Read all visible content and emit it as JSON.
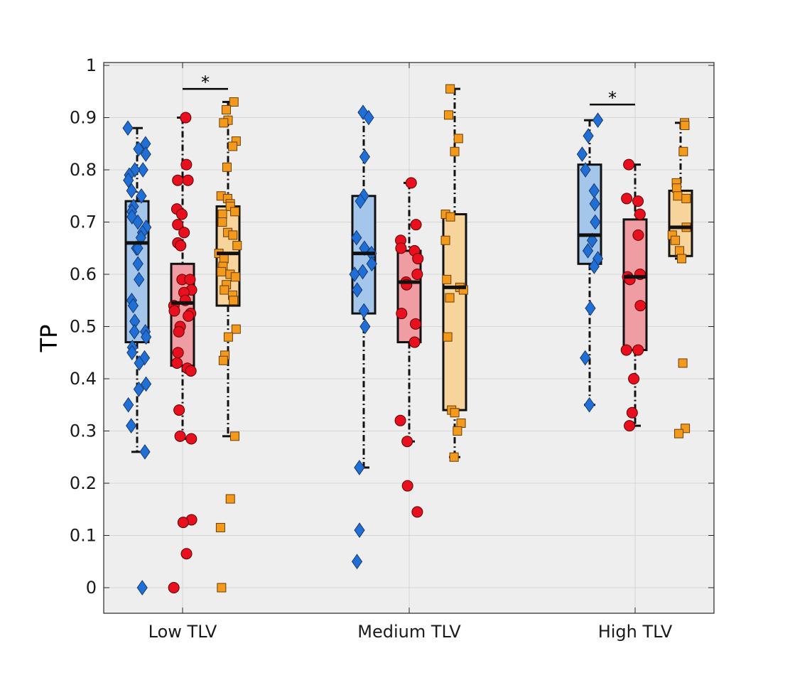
{
  "chart_data": {
    "type": "boxplot",
    "title": "",
    "xlabel": "",
    "ylabel": "TP",
    "ylim": [
      -0.05,
      1.0
    ],
    "yticks": [
      0,
      0.1,
      0.2,
      0.3,
      0.4,
      0.5,
      0.6,
      0.7,
      0.8,
      0.9,
      1
    ],
    "ytick_labels": [
      "0",
      "0.1",
      "0.2",
      "0.3",
      "0.4",
      "0.5",
      "0.6",
      "0.7",
      "0.8",
      "0.9",
      "1"
    ],
    "grid": true,
    "categories": [
      "Low TLV",
      "Medium TLV",
      "High TLV"
    ],
    "series": [
      {
        "name": "series-1",
        "marker": "diamond",
        "fill": "#1f6fd6",
        "box_fill": "#a4c6ea",
        "boxes": [
          {
            "whisker_low": 0.26,
            "q1": 0.47,
            "median": 0.66,
            "q3": 0.74,
            "whisker_high": 0.88
          },
          {
            "whisker_low": 0.23,
            "q1": 0.525,
            "median": 0.64,
            "q3": 0.75,
            "whisker_high": 0.91
          },
          {
            "whisker_low": 0.35,
            "q1": 0.62,
            "median": 0.675,
            "q3": 0.81,
            "whisker_high": 0.895
          }
        ],
        "points": [
          [
            0.85,
            0.88,
            0.84,
            0.83,
            0.8,
            0.8,
            0.79,
            0.78,
            0.76,
            0.75,
            0.73,
            0.72,
            0.71,
            0.7,
            0.69,
            0.68,
            0.67,
            0.65,
            0.65,
            0.62,
            0.59,
            0.55,
            0.54,
            0.51,
            0.49,
            0.49,
            0.48,
            0.46,
            0.45,
            0.44,
            0.43,
            0.39,
            0.38,
            0.35,
            0.31,
            0.26,
            0.0
          ],
          [
            0.91,
            0.9,
            0.825,
            0.75,
            0.74,
            0.67,
            0.65,
            0.64,
            0.62,
            0.605,
            0.6,
            0.57,
            0.53,
            0.5,
            0.23,
            0.11,
            0.05
          ],
          [
            0.895,
            0.865,
            0.83,
            0.8,
            0.76,
            0.735,
            0.7,
            0.665,
            0.645,
            0.63,
            0.615,
            0.535,
            0.44,
            0.35
          ]
        ]
      },
      {
        "name": "series-2",
        "marker": "circle",
        "fill": "#e8101e",
        "box_fill": "#f09ca3",
        "boxes": [
          {
            "whisker_low": 0.285,
            "q1": 0.425,
            "median": 0.545,
            "q3": 0.62,
            "whisker_high": 0.9
          },
          {
            "whisker_low": 0.28,
            "q1": 0.47,
            "median": 0.585,
            "q3": 0.645,
            "whisker_high": 0.775
          },
          {
            "whisker_low": 0.31,
            "q1": 0.455,
            "median": 0.595,
            "q3": 0.705,
            "whisker_high": 0.81
          }
        ],
        "points": [
          [
            0.9,
            0.81,
            0.78,
            0.78,
            0.725,
            0.715,
            0.695,
            0.68,
            0.66,
            0.655,
            0.59,
            0.59,
            0.57,
            0.565,
            0.55,
            0.54,
            0.53,
            0.525,
            0.52,
            0.5,
            0.49,
            0.45,
            0.43,
            0.42,
            0.415,
            0.34,
            0.29,
            0.285,
            0.13,
            0.125,
            0.065,
            0.0
          ],
          [
            0.775,
            0.695,
            0.665,
            0.65,
            0.645,
            0.63,
            0.6,
            0.585,
            0.58,
            0.525,
            0.505,
            0.47,
            0.32,
            0.28,
            0.195,
            0.145
          ],
          [
            0.81,
            0.745,
            0.74,
            0.715,
            0.675,
            0.6,
            0.595,
            0.59,
            0.54,
            0.455,
            0.455,
            0.4,
            0.335,
            0.31
          ]
        ]
      },
      {
        "name": "series-3",
        "marker": "square",
        "fill": "#f39a1d",
        "box_fill": "#f6d49c",
        "boxes": [
          {
            "whisker_low": 0.29,
            "q1": 0.54,
            "median": 0.64,
            "q3": 0.73,
            "whisker_high": 0.93
          },
          {
            "whisker_low": 0.25,
            "q1": 0.34,
            "median": 0.575,
            "q3": 0.715,
            "whisker_high": 0.955
          },
          {
            "whisker_low": 0.63,
            "q1": 0.635,
            "median": 0.69,
            "q3": 0.76,
            "whisker_high": 0.89
          }
        ],
        "points": [
          [
            0.93,
            0.915,
            0.895,
            0.89,
            0.855,
            0.845,
            0.805,
            0.75,
            0.745,
            0.735,
            0.73,
            0.72,
            0.715,
            0.7,
            0.68,
            0.675,
            0.655,
            0.64,
            0.63,
            0.615,
            0.605,
            0.6,
            0.595,
            0.58,
            0.57,
            0.56,
            0.55,
            0.495,
            0.48,
            0.445,
            0.435,
            0.29,
            0.17,
            0.115,
            0.0
          ],
          [
            0.955,
            0.905,
            0.86,
            0.835,
            0.715,
            0.71,
            0.665,
            0.59,
            0.575,
            0.57,
            0.555,
            0.48,
            0.34,
            0.335,
            0.315,
            0.3,
            0.25
          ],
          [
            0.89,
            0.885,
            0.835,
            0.775,
            0.765,
            0.75,
            0.745,
            0.69,
            0.675,
            0.665,
            0.645,
            0.63,
            0.43,
            0.305,
            0.295
          ]
        ]
      }
    ],
    "annotations": [
      {
        "text": "*",
        "category": "Low TLV",
        "from_series": "series-2",
        "to_series": "series-3",
        "y": 0.955
      },
      {
        "text": "*",
        "category": "High TLV",
        "from_series": "series-1",
        "to_series": "series-2",
        "y": 0.925
      }
    ]
  }
}
